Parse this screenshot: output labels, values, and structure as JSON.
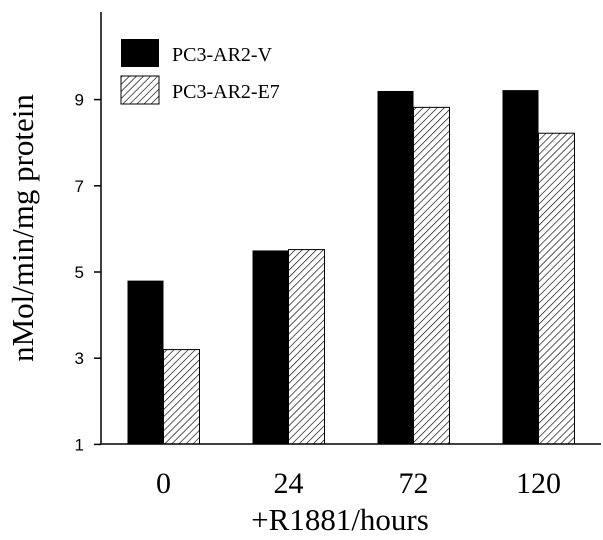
{
  "chart_data": {
    "type": "bar",
    "categories": [
      "0",
      "24",
      "72",
      "120"
    ],
    "series": [
      {
        "name": "PC3-AR2-V",
        "values": [
          4.8,
          5.5,
          9.2,
          9.22
        ],
        "fill": "solid"
      },
      {
        "name": "PC3-AR2-E7",
        "values": [
          3.2,
          5.52,
          8.82,
          8.22
        ],
        "fill": "hatched"
      }
    ],
    "xlabel": "+R1881/hours",
    "ylabel": "nMol/min/mg protein",
    "yticks": [
      1,
      3,
      5,
      7,
      9
    ],
    "ylim": [
      0,
      10
    ],
    "grid": false,
    "legend_position": "top-left",
    "colors": {
      "bar": "#000000",
      "hatch": "#000000",
      "background": "#ffffff"
    }
  }
}
